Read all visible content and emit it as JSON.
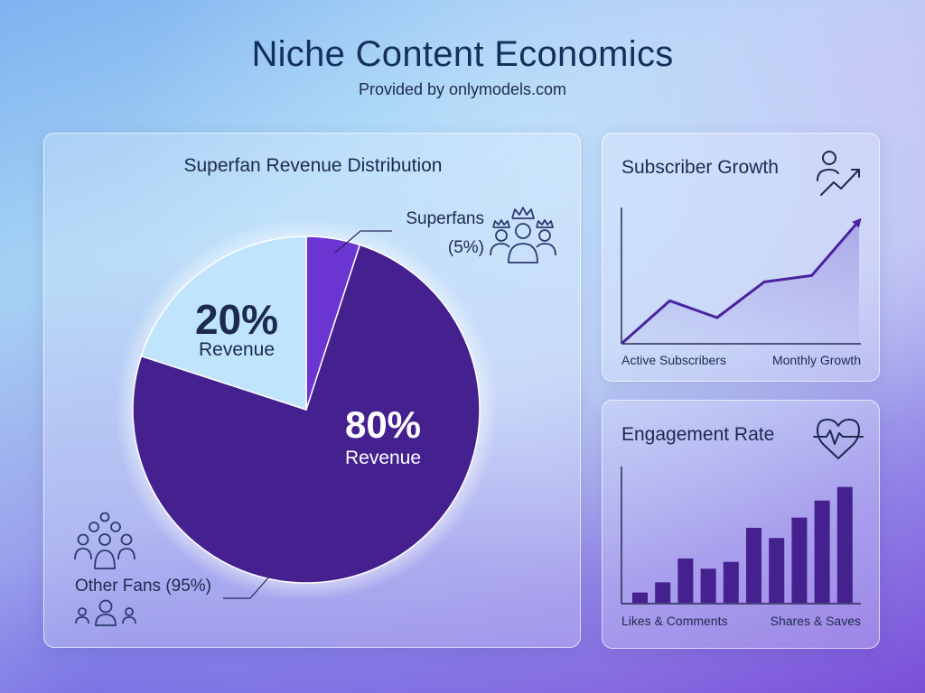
{
  "page": {
    "title": "Niche Content Economics",
    "subtitle": "Provided by onlymodels.com"
  },
  "colors": {
    "pie_dark": "#45208f",
    "pie_mid": "#6a35d0",
    "pie_light": "#bfe4fb",
    "line": "#4a23a0",
    "bar": "#45208f"
  },
  "chart_data": [
    {
      "type": "pie",
      "title": "Superfan Revenue Distribution",
      "slices": [
        {
          "label": "Superfans",
          "share_label": "(5%)",
          "value": 5,
          "color": "#6a35d0",
          "icon": "crowned-group-icon"
        },
        {
          "label": "Other Fans",
          "share_label": "(95%)",
          "value": 75,
          "color": "#45208f",
          "icon": "crowd-icon"
        },
        {
          "label": "20% Revenue",
          "value": 20,
          "color": "#bfe4fb"
        }
      ],
      "annotations": [
        {
          "value": "20%",
          "text": "Revenue"
        },
        {
          "value": "80%",
          "text": "Revenue"
        }
      ],
      "other_fans_label": "Other Fans (95%)"
    },
    {
      "type": "line",
      "title": "Subscriber Growth",
      "icon": "user-growth-icon",
      "xlabel": "Active Subscribers",
      "xlabel_right": "Monthly Growth",
      "values": [
        0,
        20,
        12,
        29,
        32,
        58
      ],
      "ylim": [
        0,
        60
      ]
    },
    {
      "type": "bar",
      "title": "Engagement Rate",
      "icon": "heart-pulse-icon",
      "xlabel": "Likes & Comments",
      "xlabel_right": "Shares & Saves",
      "values": [
        3,
        6,
        13,
        10,
        12,
        22,
        19,
        25,
        30,
        34
      ],
      "ylim": [
        0,
        40
      ]
    }
  ]
}
